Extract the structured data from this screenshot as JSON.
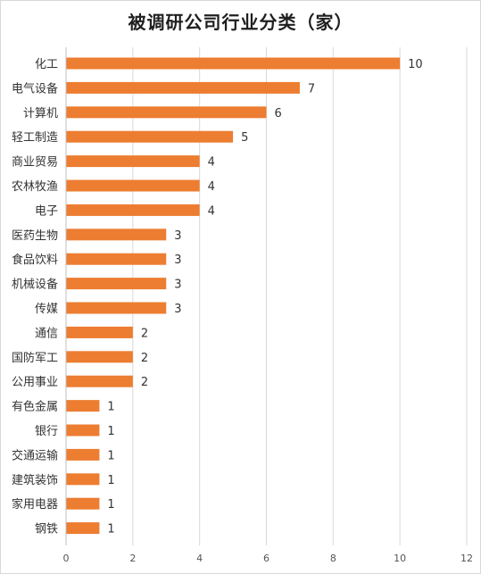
{
  "chart_data": {
    "type": "bar",
    "orientation": "horizontal",
    "title": "被调研公司行业分类（家）",
    "categories": [
      "化工",
      "电气设备",
      "计算机",
      "轻工制造",
      "商业贸易",
      "农林牧渔",
      "电子",
      "医药生物",
      "食品饮料",
      "机械设备",
      "传媒",
      "通信",
      "国防军工",
      "公用事业",
      "有色金属",
      "银行",
      "交通运输",
      "建筑装饰",
      "家用电器",
      "钢铁"
    ],
    "values": [
      10,
      7,
      6,
      5,
      4,
      4,
      4,
      3,
      3,
      3,
      3,
      2,
      2,
      2,
      1,
      1,
      1,
      1,
      1,
      1
    ],
    "xlim": [
      0,
      12
    ],
    "xticks": [
      "0",
      "2",
      "4",
      "6",
      "8",
      "10",
      "12"
    ],
    "grid": true,
    "data_labels": true,
    "bar_color": "#ED7D31",
    "grid_color": "#d9d9d9"
  }
}
